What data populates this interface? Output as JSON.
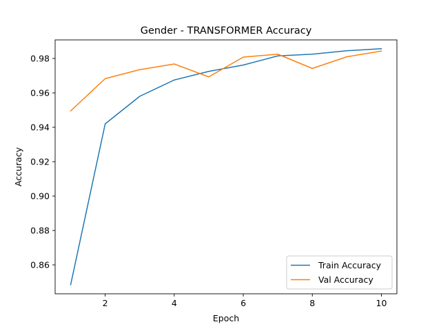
{
  "chart_data": {
    "type": "line",
    "title": "Gender - TRANSFORMER Accuracy",
    "xlabel": "Epoch",
    "ylabel": "Accuracy",
    "x": [
      1,
      2,
      3,
      4,
      5,
      6,
      7,
      8,
      9,
      10
    ],
    "xlim": [
      0.55,
      10.45
    ],
    "ylim": [
      0.8432,
      0.9908
    ],
    "xticks": [
      2,
      4,
      6,
      8,
      10
    ],
    "yticks": [
      0.86,
      0.88,
      0.9,
      0.92,
      0.94,
      0.96,
      0.98
    ],
    "ytick_labels": [
      "0.86",
      "0.88",
      "0.90",
      "0.92",
      "0.94",
      "0.96",
      "0.98"
    ],
    "grid": false,
    "legend_position": "lower-right",
    "series": [
      {
        "name": "Train Accuracy",
        "color": "#1f77b4",
        "values": [
          0.8485,
          0.942,
          0.958,
          0.9675,
          0.9725,
          0.9762,
          0.9815,
          0.9825,
          0.9845,
          0.9857
        ]
      },
      {
        "name": "Val Accuracy",
        "color": "#ff7f0e",
        "values": [
          0.9495,
          0.9683,
          0.9735,
          0.9768,
          0.9693,
          0.9808,
          0.9825,
          0.9742,
          0.981,
          0.9843
        ]
      }
    ]
  }
}
